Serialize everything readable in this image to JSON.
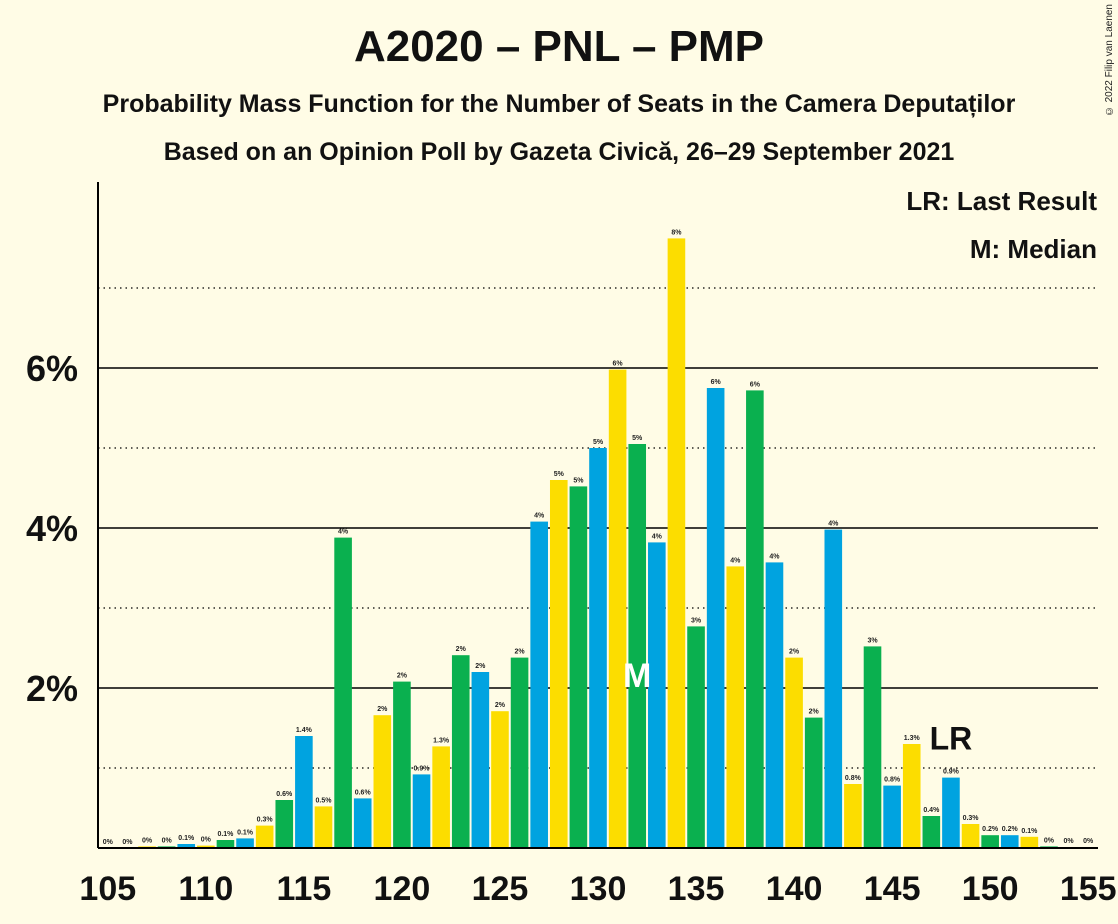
{
  "chart_data": {
    "type": "bar",
    "title": "A2020 – PNL – PMP",
    "subtitle": "Probability Mass Function for the Number of Seats in the Camera Deputaților",
    "subtitle2": "Based on an Opinion Poll by Gazeta Civică, 26–29 September 2021",
    "copyright": "© 2022 Filip van Laenen",
    "legend": {
      "lr": "LR: Last Result",
      "m": "M: Median",
      "position": "top-right"
    },
    "x": [
      105,
      106,
      107,
      108,
      109,
      110,
      111,
      112,
      113,
      114,
      115,
      116,
      117,
      118,
      119,
      120,
      121,
      122,
      123,
      124,
      125,
      126,
      127,
      128,
      129,
      130,
      131,
      132,
      133,
      134,
      135,
      136,
      137,
      138,
      139,
      140,
      141,
      142,
      143,
      144,
      145,
      146,
      147,
      148,
      149,
      150,
      151,
      152,
      153,
      154,
      155
    ],
    "values": [
      0,
      0,
      0.02,
      0.02,
      0.05,
      0.03,
      0.1,
      0.12,
      0.28,
      0.6,
      1.4,
      0.52,
      3.88,
      0.62,
      1.66,
      2.08,
      0.92,
      1.27,
      2.41,
      2.2,
      1.71,
      2.38,
      4.08,
      4.6,
      4.52,
      5.0,
      5.98,
      5.05,
      3.82,
      7.62,
      2.77,
      5.75,
      3.52,
      5.72,
      3.57,
      2.38,
      1.63,
      3.98,
      0.8,
      2.52,
      0.78,
      1.3,
      0.4,
      0.88,
      0.3,
      0.16,
      0.16,
      0.14,
      0.02,
      0.01,
      0.01
    ],
    "labels": [
      "0%",
      "0%",
      "0%",
      "0%",
      "0.1%",
      "0%",
      "0.1%",
      "0.1%",
      "0.3%",
      "0.6%",
      "1.4%",
      "0.5%",
      "4%",
      "0.6%",
      "2%",
      "2%",
      "0.9%",
      "1.3%",
      "2%",
      "2%",
      "2%",
      "2%",
      "4%",
      "5%",
      "5%",
      "5%",
      "6%",
      "5%",
      "4%",
      "8%",
      "3%",
      "6%",
      "4%",
      "6%",
      "4%",
      "2%",
      "2%",
      "4%",
      "0.8%",
      "3%",
      "0.8%",
      "1.3%",
      "0.4%",
      "0.9%",
      "0.3%",
      "0.2%",
      "0.2%",
      "0.1%",
      "0%",
      "0%",
      "0%"
    ],
    "colors": [
      "#0AB04F",
      "#00A3E0",
      "#FCDD00"
    ],
    "x_ticks": [
      105,
      110,
      115,
      120,
      125,
      130,
      135,
      140,
      145,
      150,
      155
    ],
    "y_ticks": [
      2,
      4,
      6
    ],
    "y_tick_labels": [
      "2%",
      "4%",
      "6%"
    ],
    "ylim": [
      0,
      8.3
    ],
    "grid": {
      "solid": [
        2,
        4,
        6
      ],
      "dotted": [
        1,
        3,
        5,
        7
      ]
    },
    "median_seat": 132,
    "median_label": "M",
    "last_result_seat": 148,
    "last_result_label": "LR"
  }
}
